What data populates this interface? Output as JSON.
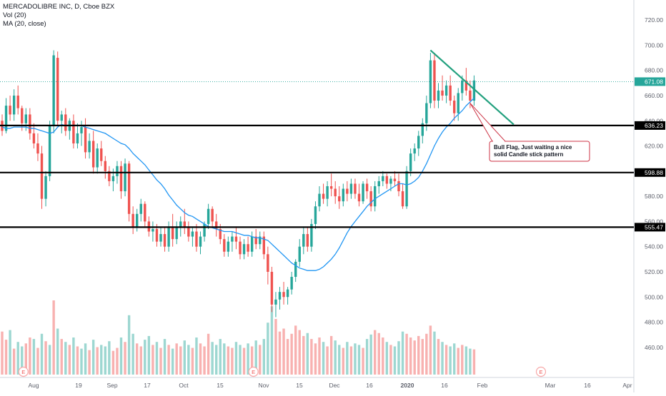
{
  "legend": {
    "symbol_line": "MERCADOLIBRE INC, D, Cboe BZX",
    "volume_label": "Vol (20)",
    "ma_label": "MA (20, close)"
  },
  "chart_data": {
    "type": "candlestick",
    "title": "MERCADOLIBRE INC, D, Cboe BZX",
    "ylim": [
      448,
      728
    ],
    "y_ticks": [
      460,
      480,
      500,
      520,
      540,
      560,
      580,
      600,
      620,
      640,
      660,
      680,
      700,
      720
    ],
    "x_tick_labels": [
      "Aug",
      "19",
      "Sep",
      "17",
      "Oct",
      "15",
      "Nov",
      "15",
      "Dec",
      "16",
      "2020",
      "16",
      "Feb",
      "Mar",
      "16",
      "Apr"
    ],
    "candles": [
      [
        640,
        645,
        628,
        632
      ],
      [
        632,
        658,
        630,
        652
      ],
      [
        652,
        660,
        640,
        645
      ],
      [
        645,
        665,
        640,
        660
      ],
      [
        660,
        668,
        645,
        650
      ],
      [
        650,
        652,
        632,
        638
      ],
      [
        638,
        650,
        632,
        645
      ],
      [
        645,
        650,
        625,
        630
      ],
      [
        630,
        638,
        618,
        622
      ],
      [
        622,
        630,
        608,
        614
      ],
      [
        614,
        620,
        570,
        578
      ],
      [
        578,
        600,
        572,
        596
      ],
      [
        596,
        640,
        592,
        636
      ],
      [
        636,
        696,
        630,
        692
      ],
      [
        690,
        695,
        636,
        640
      ],
      [
        640,
        648,
        630,
        645
      ],
      [
        645,
        650,
        628,
        632
      ],
      [
        632,
        642,
        625,
        640
      ],
      [
        640,
        645,
        618,
        622
      ],
      [
        622,
        638,
        618,
        630
      ],
      [
        630,
        640,
        620,
        635
      ],
      [
        635,
        642,
        610,
        615
      ],
      [
        615,
        630,
        610,
        624
      ],
      [
        624,
        632,
        598,
        603
      ],
      [
        603,
        622,
        598,
        618
      ],
      [
        618,
        624,
        604,
        608
      ],
      [
        608,
        612,
        594,
        600
      ],
      [
        600,
        604,
        588,
        592
      ],
      [
        592,
        602,
        584,
        596
      ],
      [
        596,
        608,
        590,
        604
      ],
      [
        604,
        608,
        578,
        584
      ],
      [
        584,
        610,
        580,
        606
      ],
      [
        606,
        608,
        560,
        566
      ],
      [
        566,
        572,
        550,
        556
      ],
      [
        556,
        570,
        552,
        566
      ],
      [
        566,
        578,
        560,
        574
      ],
      [
        574,
        576,
        556,
        560
      ],
      [
        560,
        564,
        548,
        552
      ],
      [
        552,
        560,
        544,
        554
      ],
      [
        554,
        558,
        540,
        544
      ],
      [
        544,
        556,
        540,
        550
      ],
      [
        550,
        556,
        536,
        540
      ],
      [
        540,
        560,
        536,
        556
      ],
      [
        556,
        566,
        540,
        546
      ],
      [
        546,
        560,
        542,
        556
      ],
      [
        556,
        564,
        548,
        560
      ],
      [
        560,
        570,
        550,
        556
      ],
      [
        556,
        560,
        544,
        548
      ],
      [
        548,
        556,
        540,
        552
      ],
      [
        552,
        558,
        536,
        540
      ],
      [
        540,
        552,
        534,
        548
      ],
      [
        548,
        560,
        544,
        558
      ],
      [
        558,
        574,
        554,
        570
      ],
      [
        570,
        572,
        556,
        560
      ],
      [
        560,
        566,
        548,
        554
      ],
      [
        554,
        558,
        542,
        546
      ],
      [
        546,
        550,
        532,
        536
      ],
      [
        536,
        548,
        532,
        544
      ],
      [
        544,
        552,
        536,
        548
      ],
      [
        548,
        556,
        538,
        544
      ],
      [
        544,
        548,
        530,
        534
      ],
      [
        534,
        546,
        530,
        542
      ],
      [
        542,
        548,
        532,
        536
      ],
      [
        536,
        552,
        532,
        548
      ],
      [
        548,
        554,
        538,
        542
      ],
      [
        542,
        552,
        538,
        548
      ],
      [
        548,
        552,
        530,
        534
      ],
      [
        534,
        540,
        510,
        520
      ],
      [
        520,
        524,
        488,
        494
      ],
      [
        494,
        504,
        484,
        498
      ],
      [
        498,
        508,
        490,
        504
      ],
      [
        504,
        512,
        494,
        500
      ],
      [
        500,
        508,
        494,
        506
      ],
      [
        506,
        520,
        502,
        516
      ],
      [
        516,
        530,
        512,
        528
      ],
      [
        528,
        546,
        524,
        540
      ],
      [
        540,
        556,
        534,
        550
      ],
      [
        550,
        556,
        536,
        540
      ],
      [
        540,
        562,
        536,
        558
      ],
      [
        558,
        576,
        554,
        572
      ],
      [
        572,
        588,
        568,
        582
      ],
      [
        582,
        590,
        574,
        578
      ],
      [
        578,
        592,
        572,
        588
      ],
      [
        588,
        598,
        580,
        586
      ],
      [
        586,
        592,
        574,
        580
      ],
      [
        580,
        588,
        570,
        576
      ],
      [
        576,
        590,
        572,
        586
      ],
      [
        586,
        592,
        576,
        582
      ],
      [
        582,
        594,
        578,
        590
      ],
      [
        590,
        594,
        578,
        582
      ],
      [
        582,
        590,
        572,
        576
      ],
      [
        576,
        592,
        574,
        590
      ],
      [
        590,
        594,
        578,
        584
      ],
      [
        584,
        588,
        568,
        572
      ],
      [
        572,
        592,
        568,
        588
      ],
      [
        588,
        596,
        582,
        592
      ],
      [
        592,
        600,
        588,
        596
      ],
      [
        596,
        598,
        586,
        590
      ],
      [
        590,
        596,
        584,
        594
      ],
      [
        594,
        600,
        588,
        592
      ],
      [
        592,
        598,
        580,
        584
      ],
      [
        584,
        590,
        570,
        572
      ],
      [
        572,
        604,
        570,
        600
      ],
      [
        600,
        618,
        596,
        614
      ],
      [
        614,
        622,
        608,
        618
      ],
      [
        618,
        632,
        612,
        628
      ],
      [
        628,
        642,
        622,
        638
      ],
      [
        638,
        660,
        632,
        654
      ],
      [
        654,
        694,
        650,
        688
      ],
      [
        688,
        694,
        650,
        656
      ],
      [
        656,
        670,
        650,
        664
      ],
      [
        664,
        676,
        656,
        660
      ],
      [
        660,
        672,
        654,
        668
      ],
      [
        668,
        676,
        652,
        656
      ],
      [
        656,
        660,
        640,
        646
      ],
      [
        646,
        666,
        640,
        662
      ],
      [
        662,
        676,
        656,
        672
      ],
      [
        672,
        682,
        660,
        664
      ],
      [
        664,
        672,
        650,
        656
      ],
      [
        656,
        676,
        652,
        672
      ]
    ],
    "volumes": [
      [
        0.58,
        0
      ],
      [
        0.47,
        0
      ],
      [
        0.6,
        1
      ],
      [
        0.35,
        0
      ],
      [
        0.44,
        1
      ],
      [
        0.38,
        1
      ],
      [
        0.42,
        0
      ],
      [
        0.5,
        0
      ],
      [
        0.48,
        1
      ],
      [
        0.36,
        0
      ],
      [
        0.55,
        1
      ],
      [
        0.45,
        0
      ],
      [
        0.4,
        1
      ],
      [
        1.0,
        0
      ],
      [
        0.62,
        1
      ],
      [
        0.48,
        0
      ],
      [
        0.44,
        1
      ],
      [
        0.4,
        0
      ],
      [
        0.5,
        1
      ],
      [
        0.38,
        0
      ],
      [
        0.35,
        1
      ],
      [
        0.42,
        1
      ],
      [
        0.33,
        0
      ],
      [
        0.47,
        1
      ],
      [
        0.37,
        0
      ],
      [
        0.4,
        1
      ],
      [
        0.38,
        1
      ],
      [
        0.45,
        1
      ],
      [
        0.32,
        0
      ],
      [
        0.36,
        0
      ],
      [
        0.5,
        1
      ],
      [
        0.44,
        0
      ],
      [
        0.8,
        1
      ],
      [
        0.55,
        1
      ],
      [
        0.42,
        0
      ],
      [
        0.38,
        0
      ],
      [
        0.47,
        1
      ],
      [
        0.52,
        1
      ],
      [
        0.4,
        0
      ],
      [
        0.44,
        1
      ],
      [
        0.36,
        0
      ],
      [
        0.48,
        1
      ],
      [
        0.4,
        0
      ],
      [
        0.35,
        1
      ],
      [
        0.42,
        0
      ],
      [
        0.38,
        0
      ],
      [
        0.46,
        1
      ],
      [
        0.4,
        1
      ],
      [
        0.36,
        0
      ],
      [
        0.5,
        1
      ],
      [
        0.42,
        0
      ],
      [
        0.38,
        0
      ],
      [
        0.55,
        0
      ],
      [
        0.44,
        1
      ],
      [
        0.4,
        1
      ],
      [
        0.48,
        1
      ],
      [
        0.42,
        1
      ],
      [
        0.38,
        0
      ],
      [
        0.36,
        0
      ],
      [
        0.44,
        1
      ],
      [
        0.4,
        1
      ],
      [
        0.36,
        0
      ],
      [
        0.42,
        1
      ],
      [
        0.38,
        0
      ],
      [
        0.46,
        1
      ],
      [
        0.4,
        0
      ],
      [
        0.48,
        1
      ],
      [
        0.7,
        1
      ],
      [
        0.92,
        1
      ],
      [
        0.75,
        0
      ],
      [
        0.58,
        0
      ],
      [
        0.62,
        0
      ],
      [
        0.48,
        0
      ],
      [
        0.55,
        0
      ],
      [
        0.66,
        0
      ],
      [
        0.6,
        0
      ],
      [
        0.52,
        0
      ],
      [
        0.56,
        1
      ],
      [
        0.48,
        0
      ],
      [
        0.42,
        0
      ],
      [
        0.5,
        0
      ],
      [
        0.44,
        1
      ],
      [
        0.38,
        0
      ],
      [
        0.52,
        0
      ],
      [
        0.46,
        1
      ],
      [
        0.4,
        1
      ],
      [
        0.36,
        0
      ],
      [
        0.44,
        1
      ],
      [
        0.38,
        0
      ],
      [
        0.42,
        1
      ],
      [
        0.4,
        1
      ],
      [
        0.36,
        0
      ],
      [
        0.48,
        1
      ],
      [
        0.54,
        1
      ],
      [
        0.6,
        0
      ],
      [
        0.56,
        0
      ],
      [
        0.5,
        0
      ],
      [
        0.44,
        1
      ],
      [
        0.4,
        0
      ],
      [
        0.38,
        1
      ],
      [
        0.45,
        1
      ],
      [
        0.58,
        1
      ],
      [
        0.55,
        0
      ],
      [
        0.5,
        0
      ],
      [
        0.46,
        0
      ],
      [
        0.52,
        0
      ],
      [
        0.48,
        0
      ],
      [
        0.55,
        0
      ],
      [
        0.66,
        0
      ],
      [
        0.58,
        1
      ],
      [
        0.48,
        0
      ],
      [
        0.44,
        1
      ],
      [
        0.4,
        0
      ],
      [
        0.38,
        1
      ],
      [
        0.42,
        1
      ],
      [
        0.36,
        0
      ],
      [
        0.4,
        0
      ],
      [
        0.38,
        1
      ],
      [
        0.35,
        1
      ],
      [
        0.34,
        0
      ]
    ],
    "ma_values": [
      635,
      634,
      634,
      635,
      635,
      635,
      635,
      634,
      634,
      633,
      632,
      631,
      630,
      631,
      635,
      637,
      636,
      636,
      636,
      636,
      636,
      635,
      634,
      633,
      632,
      631,
      630,
      628,
      626,
      624,
      622,
      621,
      618,
      614,
      611,
      608,
      605,
      601,
      597,
      593,
      590,
      586,
      581,
      577,
      573,
      570,
      567,
      565,
      564,
      562,
      560,
      558,
      556,
      555,
      554,
      553,
      552,
      552,
      552,
      551,
      550,
      549,
      549,
      548,
      547,
      547,
      546,
      545,
      542,
      539,
      536,
      533,
      530,
      527,
      525,
      523,
      522,
      521,
      521,
      521,
      522,
      524,
      527,
      530,
      534,
      539,
      545,
      551,
      556,
      560,
      564,
      568,
      572,
      575,
      578,
      580,
      582,
      584,
      586,
      588,
      590,
      590,
      589,
      590,
      592,
      595,
      600,
      606,
      613,
      620,
      626,
      631,
      635,
      638,
      642,
      645,
      648,
      652,
      655,
      658
    ],
    "horizontal_levels": [
      636.23,
      598.88,
      555.47
    ],
    "last_price": 671.08,
    "trendline": {
      "from": {
        "index": 108,
        "price": 696
      },
      "to": {
        "index": 129,
        "price": 637
      }
    },
    "earnings_markers": [
      5,
      63
    ],
    "earnings_future_label": "E",
    "annotation": {
      "text_line1": "Bull Flag, Just waiting a nice",
      "text_line2": "solid Candle stick pattern",
      "points_to": {
        "index": 118,
        "price": 654
      }
    },
    "colors": {
      "up": "#26a69a",
      "down": "#ef5350",
      "ma": "#2196f3",
      "trendline": "#22a07e",
      "levels": "#000000",
      "annotation_border": "#cc3344"
    },
    "grid": false
  }
}
